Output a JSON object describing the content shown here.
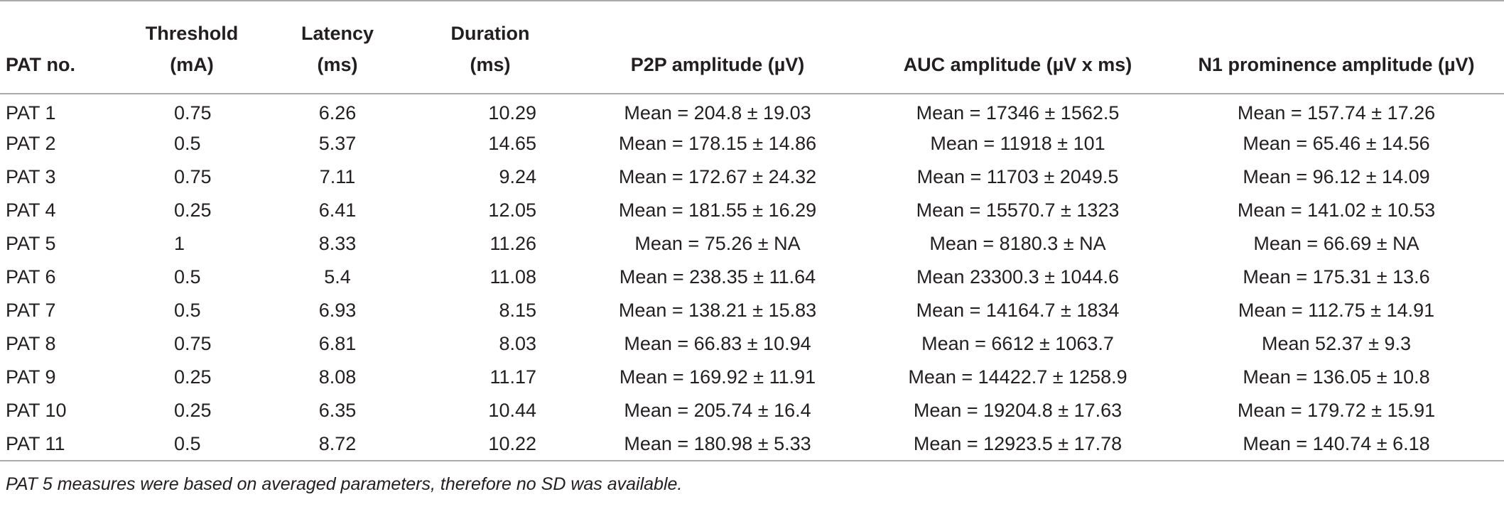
{
  "table": {
    "headers": [
      {
        "line1": "",
        "line2": "PAT no."
      },
      {
        "line1": "Threshold",
        "line2": "(mA)"
      },
      {
        "line1": "Latency",
        "line2": "(ms)"
      },
      {
        "line1": "Duration",
        "line2": "(ms)"
      },
      {
        "line1": "",
        "line2": "P2P amplitude (µV)"
      },
      {
        "line1": "",
        "line2": "AUC amplitude (µV x ms)"
      },
      {
        "line1": "",
        "line2": "N1 prominence amplitude (µV)"
      }
    ],
    "rows": [
      [
        "PAT 1",
        "0.75",
        "6.26",
        "10.29",
        "Mean = 204.8 ± 19.03",
        "Mean = 17346 ± 1562.5",
        "Mean = 157.74 ± 17.26"
      ],
      [
        "PAT 2",
        "0.5",
        "5.37",
        "14.65",
        "Mean = 178.15 ± 14.86",
        "Mean = 11918 ± 101",
        "Mean = 65.46 ± 14.56"
      ],
      [
        "PAT 3",
        "0.75",
        "7.11",
        "9.24",
        "Mean = 172.67 ± 24.32",
        "Mean = 11703 ± 2049.5",
        "Mean = 96.12 ± 14.09"
      ],
      [
        "PAT 4",
        "0.25",
        "6.41",
        "12.05",
        "Mean = 181.55 ± 16.29",
        "Mean = 15570.7 ± 1323",
        "Mean = 141.02 ± 10.53"
      ],
      [
        "PAT 5",
        "1",
        "8.33",
        "11.26",
        "Mean = 75.26 ± NA",
        "Mean = 8180.3 ± NA",
        "Mean = 66.69 ± NA"
      ],
      [
        "PAT 6",
        "0.5",
        "5.4",
        "11.08",
        "Mean = 238.35 ± 11.64",
        "Mean 23300.3 ± 1044.6",
        "Mean = 175.31 ± 13.6"
      ],
      [
        "PAT 7",
        "0.5",
        "6.93",
        "8.15",
        "Mean = 138.21 ± 15.83",
        "Mean = 14164.7 ± 1834",
        "Mean = 112.75 ± 14.91"
      ],
      [
        "PAT 8",
        "0.75",
        "6.81",
        "8.03",
        "Mean = 66.83 ± 10.94",
        "Mean = 6612 ± 1063.7",
        "Mean 52.37 ± 9.3"
      ],
      [
        "PAT 9",
        "0.25",
        "8.08",
        "11.17",
        "Mean = 169.92 ± 11.91",
        "Mean = 14422.7 ± 1258.9",
        "Mean = 136.05 ± 10.8"
      ],
      [
        "PAT 10",
        "0.25",
        "6.35",
        "10.44",
        "Mean = 205.74 ± 16.4",
        "Mean = 19204.8 ± 17.63",
        "Mean = 179.72 ± 15.91"
      ],
      [
        "PAT 11",
        "0.5",
        "8.72",
        "10.22",
        "Mean = 180.98 ± 5.33",
        "Mean = 12923.5 ± 17.78",
        "Mean = 140.74 ± 6.18"
      ]
    ]
  },
  "footnote": "PAT 5 measures were based on averaged parameters, therefore no SD was available."
}
